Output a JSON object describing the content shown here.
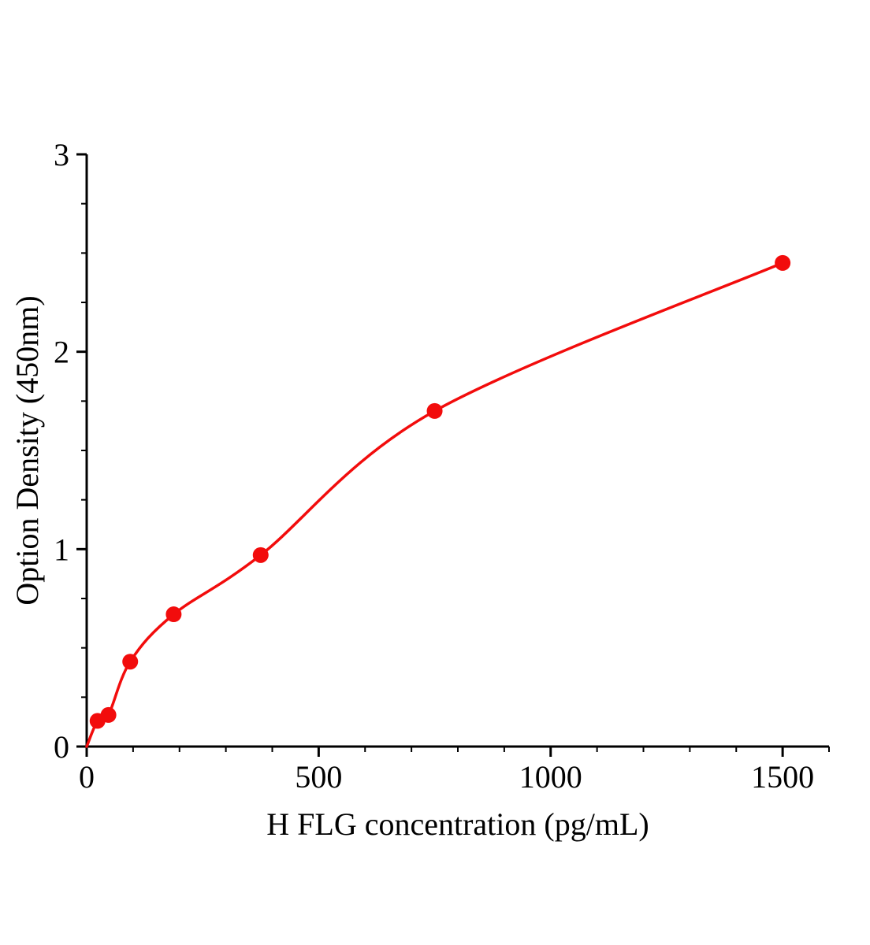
{
  "page": {
    "background_color": "#ffffff"
  },
  "chart_data": {
    "type": "scatter",
    "title": "",
    "xlabel": "H FLG concentration (pg/mL)",
    "ylabel": "Option Density (450nm)",
    "x": [
      23.4,
      46.9,
      93.8,
      187.5,
      375,
      750,
      1500
    ],
    "y": [
      0.13,
      0.16,
      0.43,
      0.67,
      0.97,
      1.7,
      2.45
    ],
    "curve_start": [
      0,
      0
    ],
    "xlim": [
      0,
      1600
    ],
    "ylim": [
      0,
      3
    ],
    "x_major_ticks": [
      0,
      500,
      1000,
      1500
    ],
    "x_tick_labels": [
      "0",
      "500",
      "1000",
      "1500"
    ],
    "y_major_ticks": [
      0,
      1,
      2,
      3
    ],
    "y_tick_labels": [
      "0",
      "1",
      "2",
      "3"
    ],
    "x_minor_step": 100,
    "y_minor_step": 0.25,
    "grid": false,
    "legend": null,
    "point_color": "#f20c0c",
    "curve_color": "#f20c0c",
    "axis_color": "#000000"
  }
}
